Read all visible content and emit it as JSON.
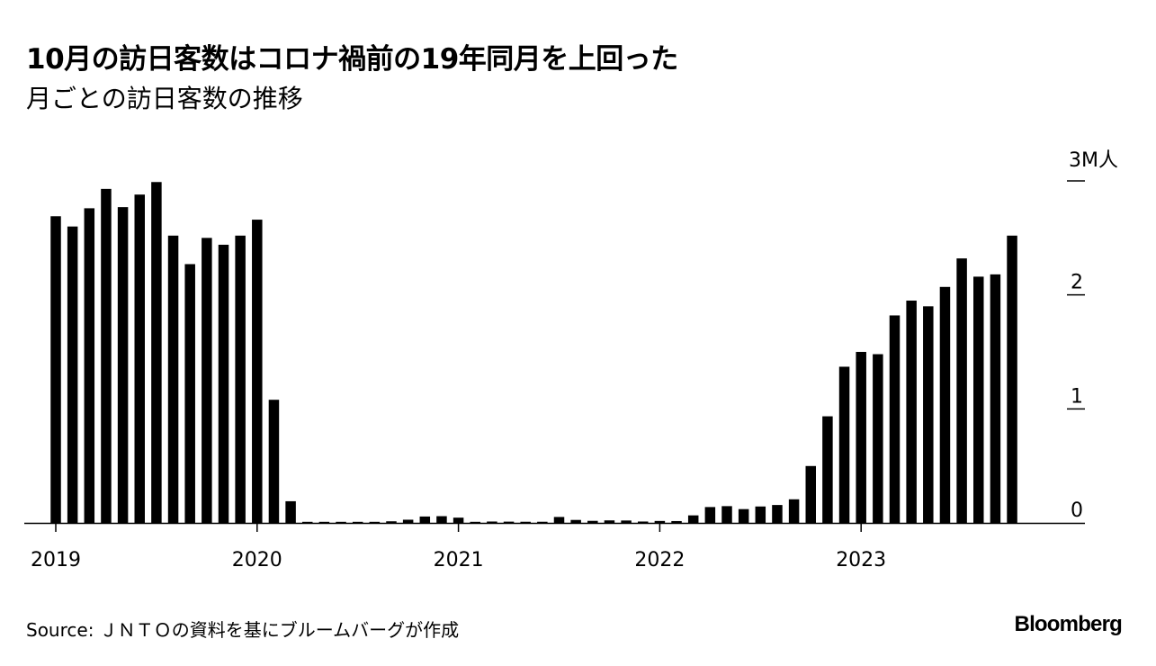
{
  "header": {
    "title": "10月の訪日客数はコロナ禍前の19年同月を上回った",
    "subtitle": "月ごとの訪日客数の推移"
  },
  "footer": {
    "source": "Source: ＪＮＴＯの資料を基にブルームバーグが作成",
    "brand": "Bloomberg"
  },
  "chart_data": {
    "type": "bar",
    "unit_label": "3M人",
    "y_ticks": [
      {
        "value": 0,
        "label": "0"
      },
      {
        "value": 1,
        "label": "1"
      },
      {
        "value": 2,
        "label": "2"
      },
      {
        "value": 3,
        "label": "3M人"
      }
    ],
    "x_ticks": [
      {
        "index": 0,
        "label": "2019"
      },
      {
        "index": 12,
        "label": "2020"
      },
      {
        "index": 24,
        "label": "2021"
      },
      {
        "index": 36,
        "label": "2022"
      },
      {
        "index": 48,
        "label": "2023"
      }
    ],
    "ylim": [
      0,
      3
    ],
    "grid": false,
    "bar_color": "#000000",
    "categories": [
      "2019-01",
      "2019-02",
      "2019-03",
      "2019-04",
      "2019-05",
      "2019-06",
      "2019-07",
      "2019-08",
      "2019-09",
      "2019-10",
      "2019-11",
      "2019-12",
      "2020-01",
      "2020-02",
      "2020-03",
      "2020-04",
      "2020-05",
      "2020-06",
      "2020-07",
      "2020-08",
      "2020-09",
      "2020-10",
      "2020-11",
      "2020-12",
      "2021-01",
      "2021-02",
      "2021-03",
      "2021-04",
      "2021-05",
      "2021-06",
      "2021-07",
      "2021-08",
      "2021-09",
      "2021-10",
      "2021-11",
      "2021-12",
      "2022-01",
      "2022-02",
      "2022-03",
      "2022-04",
      "2022-05",
      "2022-06",
      "2022-07",
      "2022-08",
      "2022-09",
      "2022-10",
      "2022-11",
      "2022-12",
      "2023-01",
      "2023-02",
      "2023-03",
      "2023-04",
      "2023-05",
      "2023-06",
      "2023-07",
      "2023-08",
      "2023-09",
      "2023-10"
    ],
    "values": [
      2.69,
      2.6,
      2.76,
      2.93,
      2.77,
      2.88,
      2.99,
      2.52,
      2.27,
      2.5,
      2.44,
      2.52,
      2.66,
      1.08,
      0.19,
      0.003,
      0.002,
      0.003,
      0.004,
      0.009,
      0.014,
      0.028,
      0.056,
      0.059,
      0.046,
      0.007,
      0.012,
      0.011,
      0.01,
      0.01,
      0.052,
      0.026,
      0.018,
      0.022,
      0.021,
      0.012,
      0.017,
      0.016,
      0.066,
      0.139,
      0.147,
      0.121,
      0.144,
      0.157,
      0.207,
      0.499,
      0.935,
      1.37,
      1.5,
      1.48,
      1.82,
      1.95,
      1.9,
      2.07,
      2.32,
      2.16,
      2.18,
      2.52
    ]
  }
}
